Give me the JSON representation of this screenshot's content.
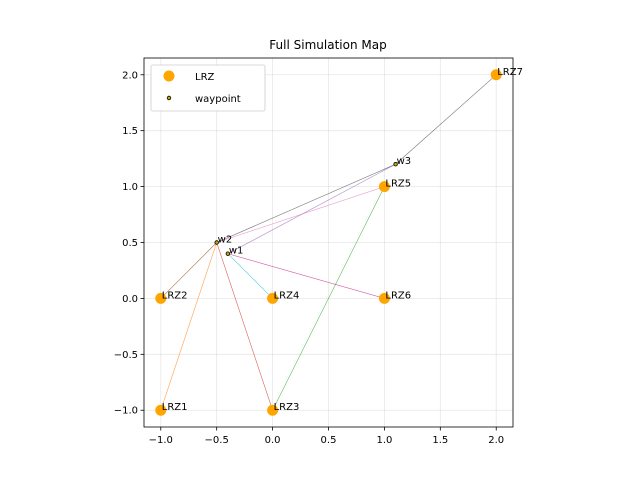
{
  "chart_data": {
    "type": "scatter",
    "title": "Full Simulation Map",
    "xlim": [
      -1.15,
      2.15
    ],
    "ylim": [
      -1.15,
      2.15
    ],
    "xticks": [
      -1.0,
      -0.5,
      0.0,
      0.5,
      1.0,
      1.5,
      2.0
    ],
    "yticks": [
      -1.0,
      -0.5,
      0.0,
      0.5,
      1.0,
      1.5,
      2.0
    ],
    "grid": true,
    "legend_position": "upper-left",
    "series": [
      {
        "name": "LRZ",
        "color": "#ffa500",
        "marker": "large-circle",
        "points": [
          {
            "label": "LRZ1",
            "x": -1.0,
            "y": -1.0
          },
          {
            "label": "LRZ2",
            "x": -1.0,
            "y": 0.0
          },
          {
            "label": "LRZ3",
            "x": 0.0,
            "y": -1.0
          },
          {
            "label": "LRZ4",
            "x": 0.0,
            "y": 0.0
          },
          {
            "label": "LRZ5",
            "x": 1.0,
            "y": 1.0
          },
          {
            "label": "LRZ6",
            "x": 1.0,
            "y": 0.0
          },
          {
            "label": "LRZ7",
            "x": 2.0,
            "y": 2.0
          }
        ]
      },
      {
        "name": "waypoint",
        "color": "#c8a800",
        "marker": "small-circle",
        "points": [
          {
            "label": "w1",
            "x": -0.4,
            "y": 0.4
          },
          {
            "label": "w2",
            "x": -0.5,
            "y": 0.5
          },
          {
            "label": "w3",
            "x": 1.1,
            "y": 1.2
          }
        ]
      }
    ],
    "paths": [
      {
        "color": "#444444",
        "points": [
          [
            -0.5,
            0.5
          ],
          [
            1.1,
            1.2
          ],
          [
            2.0,
            2.0
          ]
        ]
      },
      {
        "color": "#8b4513",
        "points": [
          [
            -1.0,
            0.0
          ],
          [
            -0.5,
            0.5
          ]
        ]
      },
      {
        "color": "#ff7f0e",
        "points": [
          [
            -1.0,
            -1.0
          ],
          [
            -0.5,
            0.5
          ]
        ]
      },
      {
        "color": "#d62728",
        "points": [
          [
            0.0,
            -1.0
          ],
          [
            -0.5,
            0.5
          ]
        ]
      },
      {
        "color": "#2ca02c",
        "points": [
          [
            0.0,
            -1.0
          ],
          [
            1.0,
            1.0
          ]
        ]
      },
      {
        "color": "#e377c2",
        "points": [
          [
            -0.5,
            0.5
          ],
          [
            1.0,
            1.0
          ]
        ]
      },
      {
        "color": "#9467bd",
        "points": [
          [
            -0.4,
            0.4
          ],
          [
            1.1,
            1.2
          ]
        ]
      },
      {
        "color": "#c51b7d",
        "points": [
          [
            -0.4,
            0.4
          ],
          [
            1.0,
            0.0
          ]
        ]
      },
      {
        "color": "#17becf",
        "points": [
          [
            -0.4,
            0.4
          ],
          [
            0.0,
            0.0
          ]
        ]
      }
    ]
  }
}
